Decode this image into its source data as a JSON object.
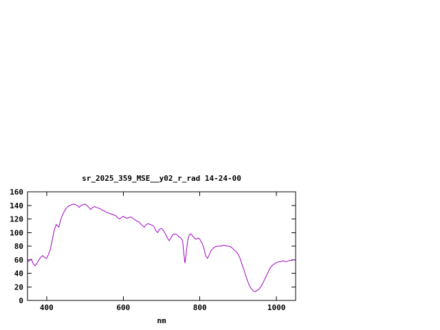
{
  "chart_data": {
    "type": "line",
    "title": "sr_2025_359_MSE__y02_r_rad 14-24-00",
    "xlabel": "nm",
    "ylabel": "",
    "xlim": [
      350,
      1050
    ],
    "ylim": [
      0,
      160
    ],
    "xticks": [
      400,
      600,
      800,
      1000
    ],
    "yticks": [
      0,
      20,
      40,
      60,
      80,
      100,
      120,
      140,
      160
    ],
    "grid": false,
    "legend_position": "none",
    "background_color": "#ffffff",
    "axis_color": "#000000",
    "line_color": "#a000c0",
    "series": [
      {
        "name": "sr_2025_359_MSE__y02_r_rad",
        "x": [
          350,
          355,
          360,
          365,
          370,
          375,
          380,
          385,
          390,
          395,
          400,
          405,
          410,
          415,
          420,
          425,
          428,
          432,
          436,
          440,
          445,
          450,
          455,
          460,
          465,
          470,
          475,
          480,
          485,
          490,
          495,
          500,
          505,
          510,
          515,
          520,
          525,
          530,
          535,
          540,
          545,
          550,
          555,
          560,
          565,
          570,
          575,
          580,
          585,
          590,
          595,
          600,
          605,
          610,
          615,
          620,
          625,
          630,
          635,
          640,
          645,
          650,
          655,
          660,
          665,
          670,
          675,
          680,
          685,
          690,
          695,
          700,
          705,
          710,
          715,
          720,
          725,
          730,
          735,
          740,
          745,
          750,
          755,
          758,
          761,
          764,
          768,
          772,
          776,
          780,
          785,
          790,
          795,
          800,
          805,
          810,
          815,
          820,
          825,
          830,
          835,
          840,
          845,
          850,
          855,
          860,
          865,
          870,
          875,
          880,
          885,
          890,
          895,
          900,
          905,
          910,
          915,
          920,
          925,
          930,
          935,
          940,
          945,
          950,
          955,
          960,
          965,
          970,
          975,
          980,
          985,
          990,
          995,
          1000,
          1005,
          1010,
          1015,
          1020,
          1025,
          1030,
          1035,
          1040,
          1045,
          1050
        ],
        "y": [
          56,
          59,
          61,
          54,
          51,
          55,
          60,
          64,
          66,
          63,
          62,
          68,
          76,
          90,
          104,
          112,
          110,
          108,
          118,
          124,
          130,
          135,
          138,
          140,
          141,
          142,
          141,
          140,
          137,
          140,
          141,
          142,
          140,
          137,
          134,
          137,
          138,
          137,
          136,
          135,
          133,
          132,
          130,
          129,
          128,
          127,
          126,
          125,
          122,
          120,
          122,
          124,
          122,
          121,
          122,
          123,
          121,
          119,
          117,
          116,
          113,
          110,
          108,
          112,
          113,
          112,
          111,
          109,
          103,
          100,
          105,
          106,
          103,
          98,
          92,
          88,
          93,
          97,
          98,
          97,
          94,
          92,
          88,
          70,
          55,
          68,
          88,
          96,
          98,
          96,
          92,
          90,
          92,
          90,
          85,
          78,
          66,
          62,
          68,
          74,
          77,
          79,
          80,
          80,
          80,
          81,
          81,
          80,
          80,
          79,
          77,
          74,
          72,
          68,
          62,
          53,
          45,
          36,
          28,
          21,
          17,
          14,
          13,
          15,
          17,
          21,
          26,
          32,
          38,
          44,
          49,
          52,
          54,
          56,
          57,
          57,
          58,
          58,
          57,
          58,
          59,
          59,
          60,
          60
        ]
      }
    ]
  }
}
